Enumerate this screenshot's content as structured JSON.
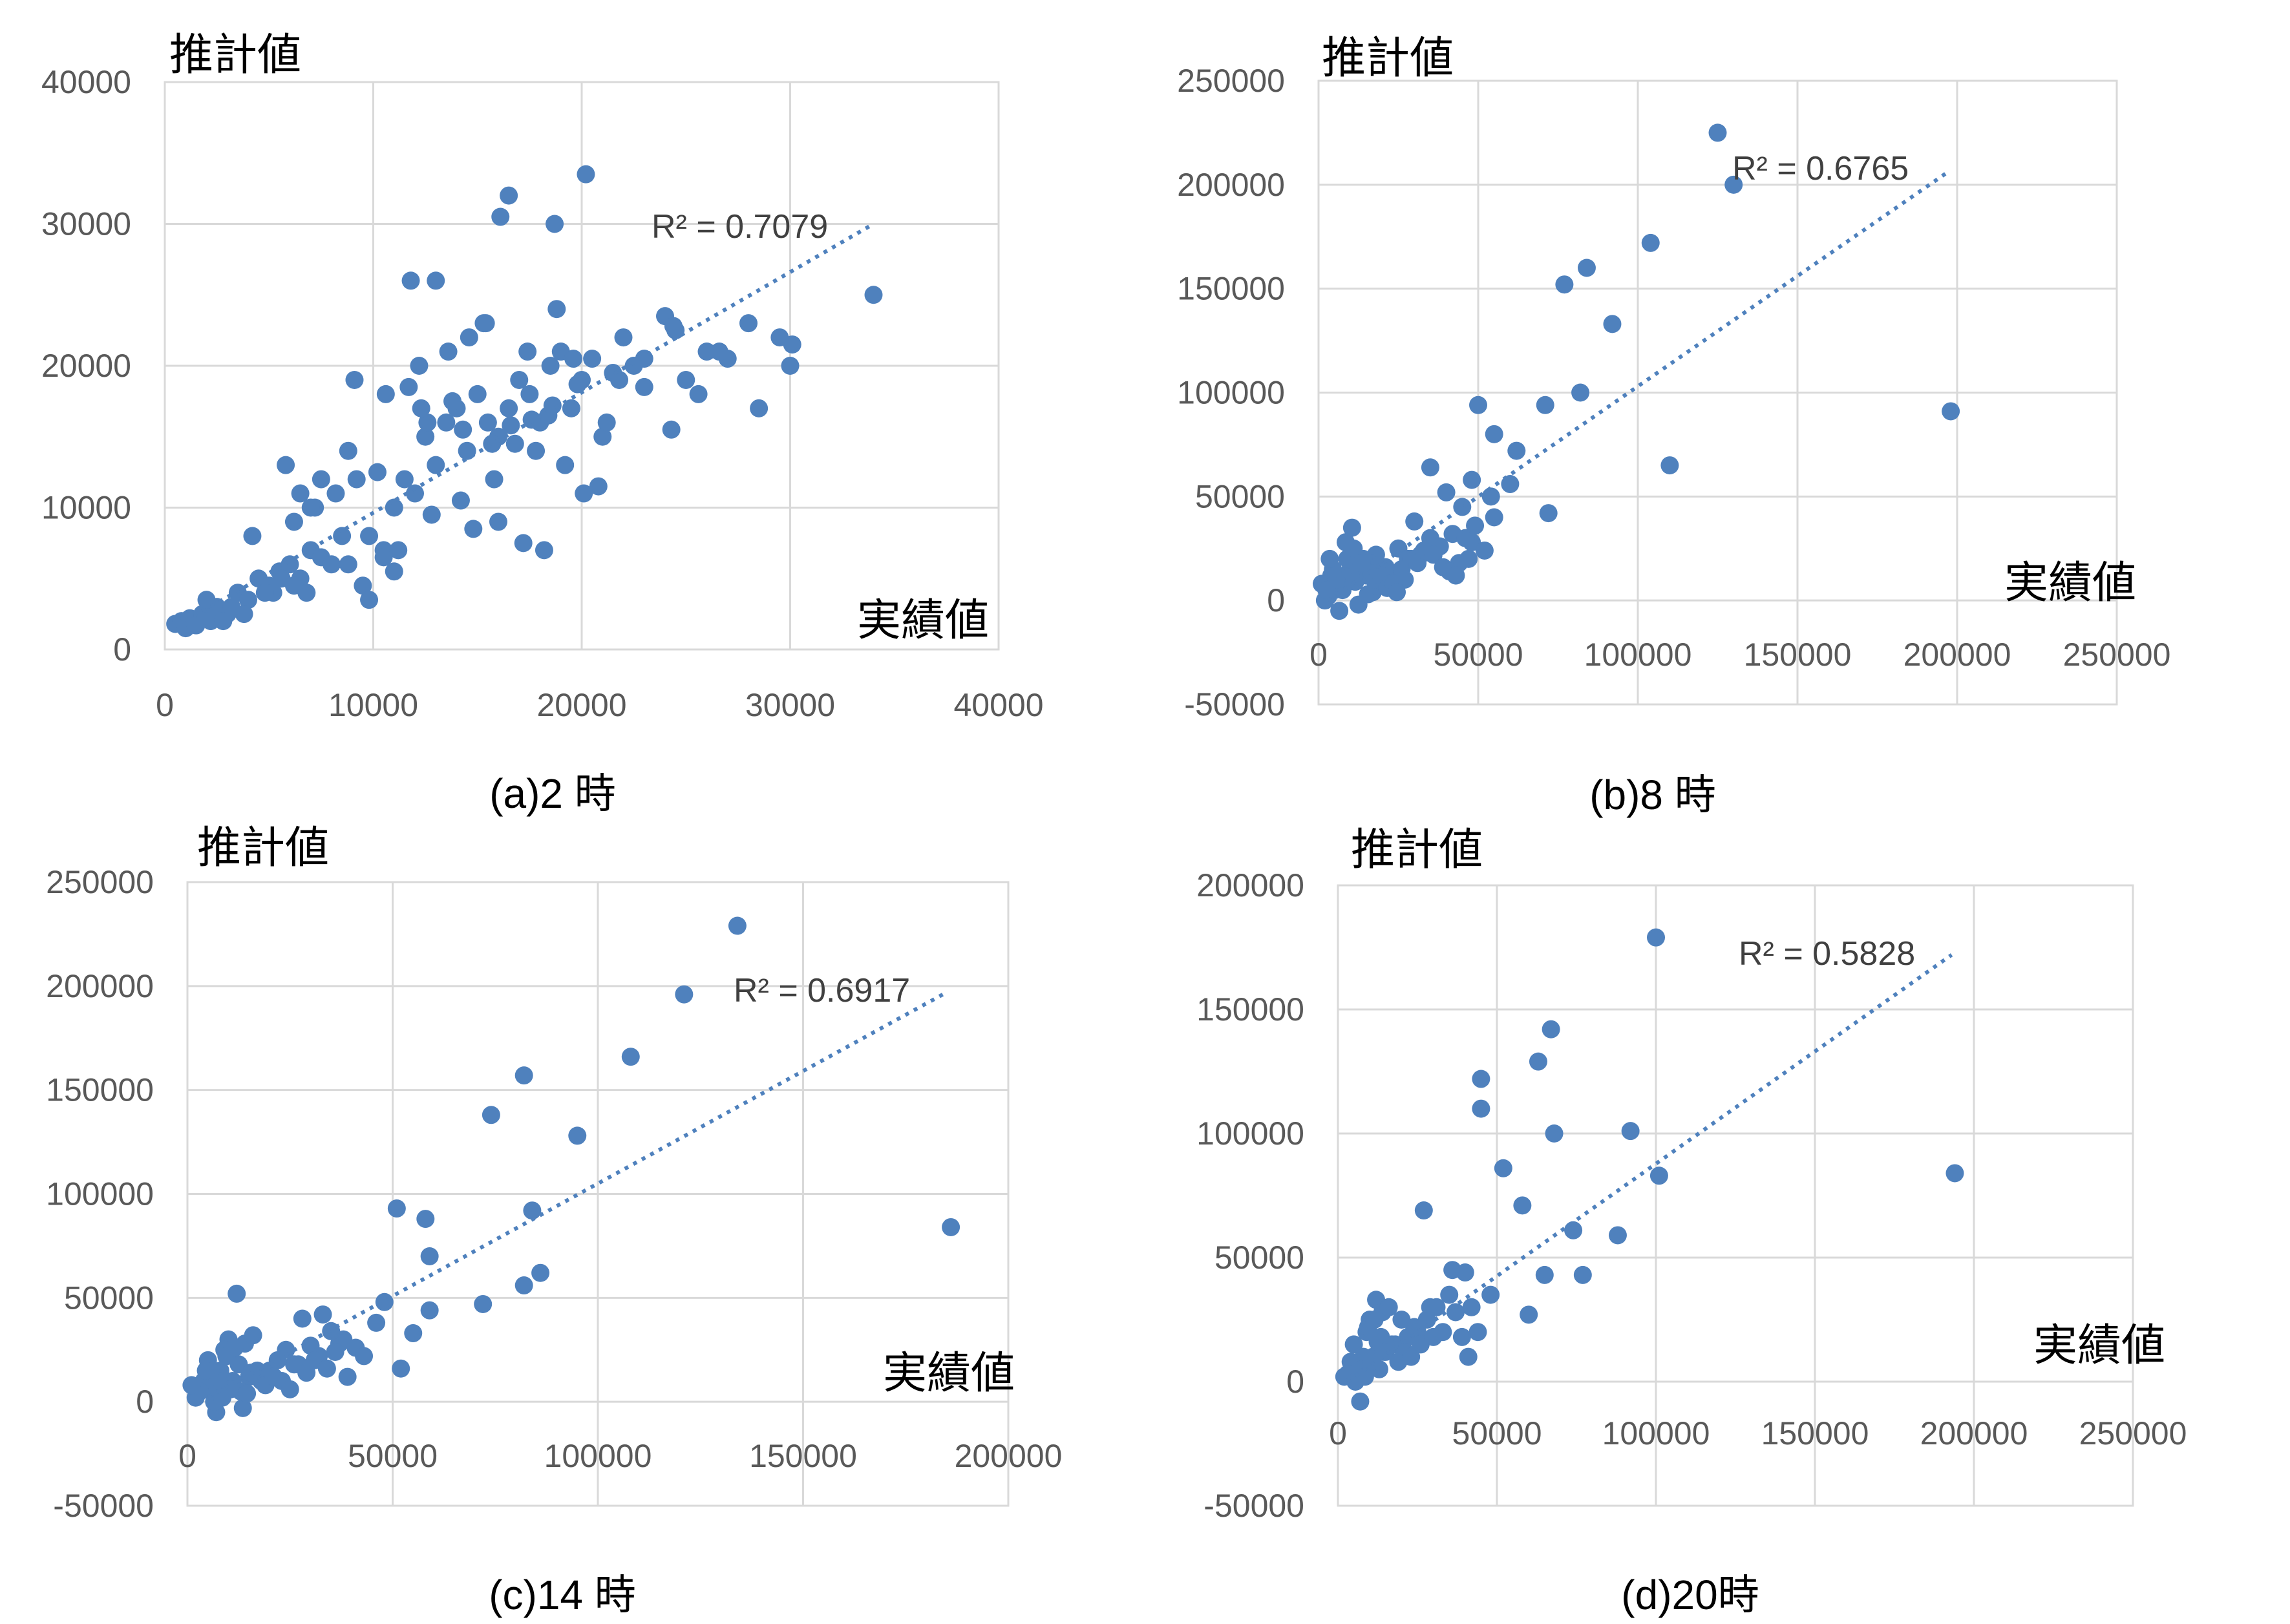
{
  "accent_color": "#4f81bd",
  "chart_data": [
    {
      "type": "scatter",
      "caption": "(a)2 時",
      "ylabel": "推計値",
      "xlabel": "実績値",
      "xlim": [
        0,
        40000
      ],
      "ylim": [
        0,
        40000
      ],
      "xticks": [
        "0",
        "10000",
        "20000",
        "30000",
        "40000"
      ],
      "yticks": [
        "0",
        "10000",
        "20000",
        "30000",
        "40000"
      ],
      "trendline": {
        "type": "linear",
        "x": [
          1000,
          34000
        ],
        "y": [
          2000,
          30000
        ]
      },
      "r2_label": "R² = 0.7079",
      "series": [
        {
          "x": [
            500,
            800,
            1000,
            1200,
            1500,
            1800,
            2200,
            2500,
            3000,
            3500,
            4000,
            4500,
            5000,
            5500,
            6000,
            6500,
            7000,
            7500,
            8000,
            8500,
            4200,
            5200,
            6200,
            7200,
            8200,
            9200,
            9800,
            10500,
            11000,
            11500,
            12000,
            12500,
            13000,
            13500,
            14000,
            14500,
            15000,
            15500,
            16000,
            16500,
            17000,
            17500,
            18000,
            18500,
            19000,
            19500,
            20000,
            20500,
            21000,
            21500,
            22000,
            22500,
            23000,
            24000,
            24500,
            25000,
            26000,
            27000,
            28000,
            28500,
            30000,
            34000,
            20200,
            16500,
            16100,
            18700,
            11800,
            13000,
            15300,
            9100,
            10600,
            12200,
            7000,
            7500,
            6500,
            5800,
            8800,
            10200,
            10500,
            11200,
            12800,
            14200,
            15800,
            16800,
            18200,
            19200,
            20800,
            21200,
            24300,
            13600,
            14600,
            15400,
            17400,
            18800,
            19600,
            14800,
            16000,
            17200,
            11000,
            9500,
            8800,
            9800,
            6800,
            6200,
            5600,
            4800,
            3800,
            3200,
            2800,
            2000,
            17800,
            18400,
            12600,
            13800,
            14300,
            15700,
            11700,
            12300,
            16600,
            17600,
            18600,
            19800,
            20100,
            21800,
            23000,
            24400,
            25600,
            26600,
            29500,
            30100
          ],
          "y": [
            1800,
            2000,
            1500,
            2200,
            1700,
            2500,
            2000,
            3000,
            2500,
            4000,
            3500,
            5000,
            4500,
            5500,
            6000,
            5000,
            7000,
            6500,
            6000,
            8000,
            8000,
            4000,
            9000,
            10000,
            11000,
            12000,
            8000,
            7000,
            10000,
            12000,
            11000,
            15000,
            13000,
            16000,
            17000,
            14000,
            18000,
            16000,
            15000,
            17000,
            19000,
            18000,
            16000,
            20000,
            21000,
            17000,
            19000,
            20500,
            15000,
            19500,
            22000,
            20000,
            18500,
            23500,
            22500,
            19000,
            21000,
            20500,
            23000,
            17000,
            20000,
            25000,
            33500,
            32000,
            30500,
            30000,
            26000,
            26000,
            23000,
            19000,
            18000,
            20000,
            10000,
            12000,
            11000,
            13000,
            14000,
            12500,
            6500,
            7000,
            9500,
            10500,
            12000,
            14500,
            7000,
            13000,
            11500,
            16000,
            15500,
            21000,
            22000,
            23000,
            21000,
            24000,
            20500,
            8500,
            9000,
            7500,
            5500,
            4500,
            6000,
            3500,
            4000,
            4500,
            5000,
            4000,
            2500,
            3000,
            2000,
            3500,
            14000,
            16500,
            16000,
            17500,
            15500,
            14500,
            18500,
            17000,
            15800,
            16200,
            17200,
            18700,
            11000,
            19000,
            20500,
            22800,
            18000,
            21000,
            22000,
            21500
          ]
        }
      ]
    },
    {
      "type": "scatter",
      "caption": "(b)8 時",
      "ylabel": "推計値",
      "xlabel": "実績値",
      "xlim": [
        0,
        250000
      ],
      "ylim": [
        -50000,
        250000
      ],
      "xticks": [
        "0",
        "50000",
        "100000",
        "150000",
        "200000",
        "250000"
      ],
      "yticks": [
        "-50000",
        "0",
        "50000",
        "100000",
        "150000",
        "200000",
        "250000"
      ],
      "trendline": {
        "type": "linear",
        "x": [
          3000,
          197000
        ],
        "y": [
          0,
          206000
        ]
      },
      "r2_label": "R² = 0.6765",
      "series": [
        {
          "x": [
            125000,
            130000,
            104000,
            84000,
            77000,
            92000,
            198000,
            110000,
            82000,
            71000,
            50000,
            55000,
            62000,
            35000,
            48000,
            54000,
            60000,
            40000,
            45000,
            72000,
            55000,
            30000,
            35000,
            42000,
            48000,
            25000,
            28000,
            32000,
            38000,
            44000,
            10000,
            12000,
            8000,
            15000,
            18000,
            20000,
            22000,
            5000,
            6000,
            9000,
            11000,
            13000,
            16000,
            19000,
            21000,
            23000,
            24000,
            3000,
            4000,
            7000,
            14000,
            17000,
            2000,
            26000,
            27000,
            29000,
            31000,
            33000,
            36000,
            39000,
            41000,
            43000,
            46000,
            47000,
            49000,
            52000,
            1000,
            12500,
            15500,
            8500,
            10500,
            6500,
            18500,
            20500,
            9500,
            11500,
            14500,
            16500,
            7500,
            13500,
            17500,
            19500,
            22500,
            5500,
            4500,
            3500,
            2500,
            21500,
            23500,
            24500
          ],
          "y": [
            225000,
            200000,
            172000,
            160000,
            152000,
            133000,
            91000,
            65000,
            100000,
            94000,
            94000,
            80000,
            72000,
            64000,
            58000,
            50000,
            56000,
            52000,
            45000,
            42000,
            40000,
            38000,
            30000,
            32000,
            28000,
            25000,
            20000,
            22000,
            26000,
            18000,
            15000,
            18000,
            10000,
            12000,
            22000,
            8000,
            10000,
            5000,
            8000,
            20000,
            25000,
            14000,
            18000,
            12000,
            16000,
            10000,
            6000,
            2000,
            12000,
            6000,
            20000,
            4000,
            0,
            15000,
            10000,
            20000,
            18000,
            24000,
            22000,
            16000,
            14000,
            12000,
            30000,
            20000,
            36000,
            24000,
            8000,
            -2000,
            3000,
            28000,
            35000,
            -5000,
            7000,
            14000,
            11000,
            9000,
            16000,
            13000,
            5000,
            18000,
            10000,
            12000,
            8000,
            10000,
            15000,
            20000,
            5000,
            6000,
            8000,
            4000
          ]
        }
      ]
    },
    {
      "type": "scatter",
      "caption": "(c)14 時",
      "ylabel": "推計値",
      "xlabel": "実績値",
      "xlim": [
        0,
        200000
      ],
      "ylim": [
        -50000,
        250000
      ],
      "xticks": [
        "0",
        "50000",
        "100000",
        "150000",
        "200000"
      ],
      "yticks": [
        "-50000",
        "0",
        "50000",
        "100000",
        "150000",
        "200000",
        "250000"
      ],
      "trendline": {
        "type": "linear",
        "x": [
          3000,
          185000
        ],
        "y": [
          0,
          197000
        ]
      },
      "r2_label": "R² = 0.6917",
      "series": [
        {
          "x": [
            134000,
            121000,
            108000,
            82000,
            74000,
            95000,
            51000,
            58000,
            59000,
            84000,
            86000,
            82000,
            72000,
            59000,
            55000,
            48000,
            186000,
            33000,
            38000,
            37000,
            35000,
            28000,
            30000,
            32000,
            26000,
            24000,
            22000,
            20000,
            18000,
            15000,
            12000,
            10000,
            8000,
            6000,
            5000,
            4000,
            3000,
            14000,
            16000,
            9000,
            11000,
            13000,
            17000,
            19000,
            21000,
            7000,
            2000,
            1000,
            23000,
            25000,
            27000,
            29000,
            31000,
            34000,
            36000,
            39000,
            41000,
            43000,
            46000,
            52000,
            12500,
            9500,
            7500,
            6500,
            15500,
            11500,
            10500,
            8500,
            13500,
            14500,
            5500,
            4500
          ],
          "y": [
            229000,
            196000,
            166000,
            157000,
            138000,
            128000,
            93000,
            88000,
            70000,
            92000,
            62000,
            56000,
            47000,
            44000,
            33000,
            48000,
            84000,
            42000,
            30000,
            28000,
            34000,
            40000,
            27000,
            22000,
            18000,
            25000,
            20000,
            15000,
            10000,
            12000,
            52000,
            30000,
            15000,
            5000,
            20000,
            10000,
            5000,
            28000,
            32000,
            25000,
            10000,
            5000,
            15000,
            8000,
            12000,
            -5000,
            2000,
            8000,
            10000,
            6000,
            18000,
            14000,
            20000,
            16000,
            24000,
            12000,
            26000,
            22000,
            38000,
            16000,
            18000,
            22000,
            10000,
            0,
            14000,
            26000,
            6000,
            2000,
            -3000,
            4000,
            12000,
            15000
          ]
        }
      ]
    },
    {
      "type": "scatter",
      "caption": "(d)20時",
      "ylabel": "推計値",
      "xlabel": "実績値",
      "xlim": [
        0,
        250000
      ],
      "ylim": [
        -50000,
        200000
      ],
      "xticks": [
        "0",
        "50000",
        "100000",
        "150000",
        "200000",
        "250000"
      ],
      "yticks": [
        "-50000",
        "0",
        "50000",
        "100000",
        "150000",
        "200000"
      ],
      "trendline": {
        "type": "linear",
        "x": [
          3000,
          193000
        ],
        "y": [
          0,
          172000
        ]
      },
      "r2_label": "R² = 0.5828",
      "series": [
        {
          "x": [
            100000,
            67000,
            63000,
            45000,
            45000,
            68000,
            92000,
            101000,
            52000,
            58000,
            74000,
            88000,
            77000,
            65000,
            60000,
            27000,
            36000,
            40000,
            35000,
            48000,
            194000,
            42000,
            39000,
            29000,
            25000,
            20000,
            22000,
            18000,
            15000,
            12000,
            10000,
            8000,
            6000,
            5000,
            4000,
            3000,
            14000,
            16000,
            9000,
            11000,
            13000,
            17000,
            19000,
            21000,
            7000,
            2000,
            23000,
            24000,
            26000,
            28000,
            30000,
            31000,
            33000,
            37000,
            41000,
            44000,
            12500,
            9500,
            7500,
            15500,
            11500,
            10500,
            8500,
            13500,
            14500,
            5500
          ],
          "y": [
            179000,
            142000,
            129000,
            122000,
            110000,
            100000,
            101000,
            83000,
            86000,
            71000,
            61000,
            59000,
            43000,
            43000,
            27000,
            69000,
            45000,
            44000,
            35000,
            35000,
            84000,
            30000,
            18000,
            30000,
            20000,
            25000,
            18000,
            15000,
            12000,
            33000,
            25000,
            10000,
            5000,
            15000,
            8000,
            3000,
            28000,
            30000,
            20000,
            10000,
            5000,
            15000,
            8000,
            12000,
            -8000,
            2000,
            10000,
            22000,
            15000,
            25000,
            18000,
            30000,
            20000,
            28000,
            10000,
            20000,
            16000,
            22000,
            5000,
            14000,
            25000,
            8000,
            2000,
            18000,
            12000,
            0
          ]
        }
      ]
    }
  ]
}
